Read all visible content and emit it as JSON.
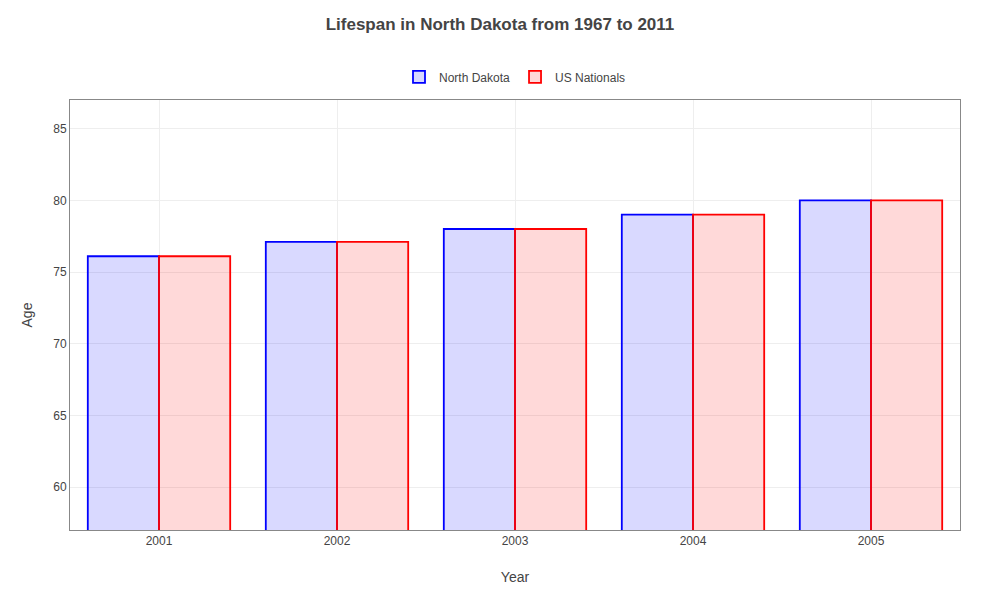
{
  "chart_data": {
    "type": "bar",
    "title": "Lifespan in North Dakota from 1967 to 2011",
    "x_label": "Year",
    "y_label": "Age",
    "categories": [
      "2001",
      "2002",
      "2003",
      "2004",
      "2005"
    ],
    "series": [
      {
        "name": "North Dakota",
        "color": "#0000ff",
        "values": [
          76.1,
          77.1,
          78.0,
          79.0,
          80.0
        ]
      },
      {
        "name": "US Nationals",
        "color": "#ff0000",
        "values": [
          76.1,
          77.1,
          78.0,
          79.0,
          80.0
        ]
      }
    ],
    "ylim": [
      57,
      87
    ],
    "yticks": [
      60,
      65,
      70,
      75,
      80,
      85
    ],
    "grid": true,
    "legend": "top"
  }
}
